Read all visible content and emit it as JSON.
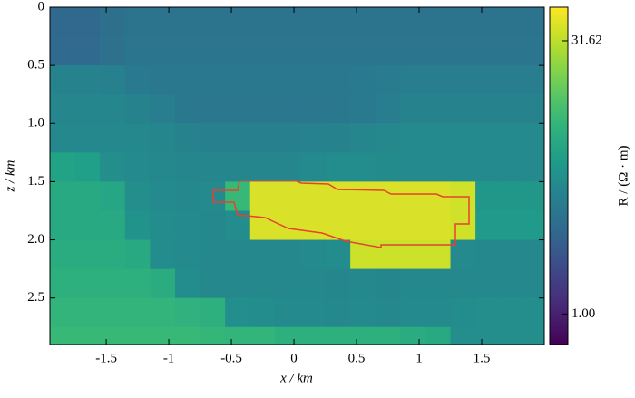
{
  "chart_data": {
    "type": "heatmap",
    "xlabel": "x / km",
    "ylabel": "z / km",
    "colorbar_label": "R / (Ω · m)",
    "colormap": "viridis",
    "color_scale": "log",
    "clim": [
      0.68,
      48.3
    ],
    "cticks": [
      {
        "value": 1,
        "label": "1.00"
      },
      31.62
    ],
    "xlim": [
      -1.95,
      2.0
    ],
    "ylim": [
      0,
      2.9
    ],
    "y_inverted": true,
    "xticks": [
      -1.5,
      -1,
      -0.5,
      0,
      0.5,
      1,
      1.5
    ],
    "yticks": [
      0,
      0.5,
      {
        "value": 1,
        "label": "1.0"
      },
      1.5,
      {
        "value": 2,
        "label": "2.0"
      },
      2.5
    ],
    "x_edges": [
      -1.95,
      -1.75,
      -1.55,
      -1.35,
      -1.15,
      -0.95,
      -0.75,
      -0.55,
      -0.35,
      -0.15,
      0.05,
      0.25,
      0.45,
      0.65,
      0.85,
      1.05,
      1.25,
      1.45,
      1.65,
      1.85,
      2.0
    ],
    "z_edges": [
      0,
      0.25,
      0.5,
      0.75,
      1,
      1.25,
      1.5,
      1.75,
      2,
      2.25,
      2.5,
      2.75,
      2.9
    ],
    "values": [
      [
        2.8,
        2.8,
        3.2,
        3.5,
        3.5,
        3.5,
        3.5,
        3.5,
        3.5,
        3.5,
        3.5,
        3.5,
        3.5,
        3.5,
        3.5,
        3.5,
        3.5,
        3.5,
        3.5,
        3.5
      ],
      [
        2.9,
        2.9,
        3.3,
        3.6,
        3.6,
        3.6,
        3.6,
        3.6,
        3.6,
        3.6,
        3.6,
        3.6,
        3.6,
        3.6,
        3.6,
        3.6,
        3.6,
        3.6,
        3.6,
        3.6
      ],
      [
        4.6,
        4.6,
        4.4,
        3.9,
        3.8,
        3.8,
        3.8,
        3.8,
        3.8,
        3.8,
        3.8,
        3.8,
        3.9,
        4.0,
        4.1,
        4.2,
        4.2,
        4.2,
        4.2,
        4.2
      ],
      [
        4.8,
        4.8,
        4.8,
        4.6,
        4.2,
        3.8,
        3.7,
        3.7,
        3.7,
        3.7,
        3.7,
        3.8,
        3.9,
        4.2,
        4.6,
        4.6,
        4.6,
        4.6,
        4.6,
        4.6
      ],
      [
        5.0,
        5.0,
        5.0,
        5.0,
        4.8,
        4.6,
        4.4,
        4.4,
        4.4,
        4.4,
        4.5,
        4.6,
        4.8,
        5.0,
        5.2,
        5.2,
        5.2,
        5.2,
        5.2,
        5.2
      ],
      [
        8.0,
        7.5,
        5.5,
        5.2,
        5.0,
        4.9,
        4.8,
        4.8,
        4.8,
        4.9,
        5.2,
        5.4,
        5.4,
        5.3,
        5.2,
        5.2,
        5.2,
        5.2,
        5.2,
        5.2
      ],
      [
        9.0,
        9.0,
        8.5,
        5.5,
        5.2,
        5.0,
        5.2,
        12.0,
        38,
        38,
        38,
        38,
        38,
        38,
        38,
        38,
        36,
        6.5,
        6.5,
        6.5
      ],
      [
        9.0,
        9.0,
        9.0,
        6.0,
        5.4,
        5.2,
        5.0,
        5.4,
        38,
        38,
        38,
        38,
        38,
        38,
        38,
        38,
        36,
        6.8,
        6.8,
        6.8
      ],
      [
        9.5,
        9.5,
        9.5,
        9.0,
        5.4,
        5.2,
        5.0,
        5.0,
        5.0,
        5.0,
        5.2,
        5.4,
        35,
        35,
        35,
        35,
        5.2,
        5.0,
        5.0,
        5.0
      ],
      [
        10,
        10,
        10,
        10,
        9.5,
        5.4,
        5.0,
        5.0,
        5.0,
        5.0,
        5.0,
        4.8,
        5.0,
        4.8,
        5.0,
        5.0,
        5.0,
        5.0,
        5.0,
        5.0
      ],
      [
        11,
        11,
        11,
        11,
        11,
        10.5,
        10,
        5.6,
        5.4,
        5.2,
        5.2,
        5.0,
        5.2,
        5.0,
        5.2,
        5.2,
        5.4,
        5.5,
        5.5,
        5.5
      ],
      [
        12,
        12,
        12,
        12,
        12,
        12,
        11.5,
        11,
        11,
        10,
        10,
        10,
        10,
        10,
        9.5,
        9,
        5.5,
        5.5,
        5.5,
        5.5
      ]
    ]
  }
}
